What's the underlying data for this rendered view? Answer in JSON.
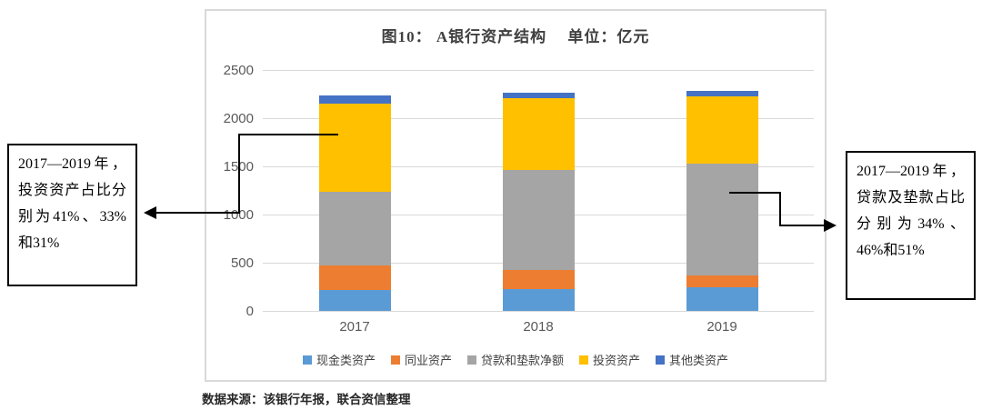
{
  "chart_data": {
    "type": "bar",
    "stacked": true,
    "title": "图10： A银行资产结构　 单位：亿元",
    "categories": [
      "2017",
      "2018",
      "2019"
    ],
    "series": [
      {
        "name": "现金类资产",
        "color": "#5B9BD5",
        "values": [
          220,
          230,
          245
        ]
      },
      {
        "name": "同业资产",
        "color": "#ED7D31",
        "values": [
          255,
          190,
          120
        ]
      },
      {
        "name": "贷款和垫款净额",
        "color": "#A5A5A5",
        "values": [
          760,
          1040,
          1160
        ]
      },
      {
        "name": "投资资产",
        "color": "#FFC000",
        "values": [
          915,
          750,
          700
        ]
      },
      {
        "name": "其他类资产",
        "color": "#4472C4",
        "values": [
          90,
          55,
          60
        ]
      }
    ],
    "totals": [
      2240,
      2265,
      2285
    ],
    "ylim": [
      0,
      2500
    ],
    "yticks": [
      0,
      500,
      1000,
      1500,
      2000,
      2500
    ],
    "ylabel": "",
    "xlabel": "",
    "unit": "亿元",
    "grid": true,
    "legend_position": "bottom"
  },
  "annotations": {
    "left": {
      "text": "2017—2019年，投资资产占比分别为41%、33%和31%"
    },
    "right": {
      "text": "2017—2019年，贷款及垫款占比分别为34%、46%和51%"
    }
  },
  "source_note": "数据来源：该银行年报，联合资信整理",
  "style": {
    "gridline_color": "#d9d9d9",
    "axis_text_color": "#595959",
    "title_color": "#404040",
    "connector_color": "#000000",
    "panel_border_color": "#d9d9d9"
  }
}
